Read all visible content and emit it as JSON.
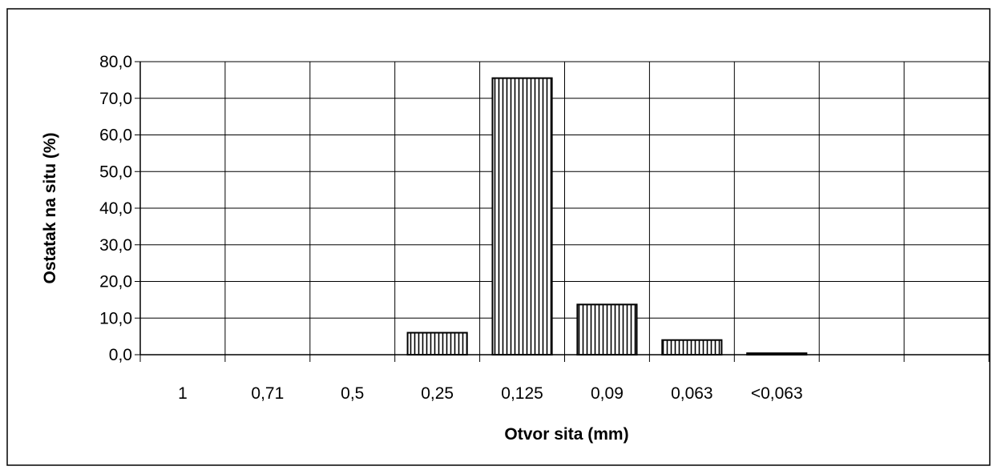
{
  "chart_data": {
    "type": "bar",
    "title": "",
    "xlabel": "Otvor sita  (mm)",
    "ylabel": "Ostatak na situ  (%)",
    "categories": [
      "1",
      "0,71",
      "0,5",
      "0,25",
      "0,125",
      "0,09",
      "0,063",
      "<0,063",
      "",
      ""
    ],
    "values": [
      0,
      0,
      0,
      6.0,
      75.5,
      13.7,
      4.0,
      0.4,
      null,
      null
    ],
    "ylim": [
      0,
      80
    ],
    "yticks": [
      "0,0",
      "10,0",
      "20,0",
      "30,0",
      "40,0",
      "50,0",
      "60,0",
      "70,0",
      "80,0"
    ],
    "ytick_values": [
      0,
      10,
      20,
      30,
      40,
      50,
      60,
      70,
      80
    ],
    "grid": true,
    "bar_pattern": "vertical-hatch",
    "bar_color": "#000000",
    "background": "#ffffff"
  }
}
